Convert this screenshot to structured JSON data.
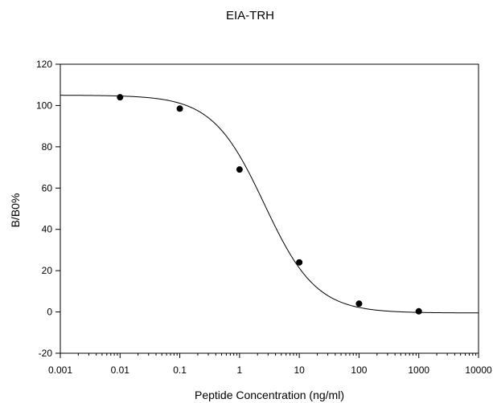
{
  "chart_data": {
    "type": "scatter",
    "title": "EIA-TRH",
    "xlabel": "Peptide Concentration (ng/ml)",
    "ylabel": "B/B0%",
    "x_scale": "log",
    "xlim": [
      0.001,
      10000
    ],
    "ylim": [
      -20,
      120
    ],
    "x_ticks": [
      "0.001",
      "0.01",
      "0.1",
      "1",
      "10",
      "100",
      "1000",
      "10000"
    ],
    "y_ticks": [
      "-20",
      "0",
      "20",
      "40",
      "60",
      "80",
      "100",
      "120"
    ],
    "grid": false,
    "series": [
      {
        "points": [
          {
            "x": 0.01,
            "y": 104
          },
          {
            "x": 0.1,
            "y": 98.5
          },
          {
            "x": 1,
            "y": 69
          },
          {
            "x": 10,
            "y": 24
          },
          {
            "x": 100,
            "y": 4
          },
          {
            "x": 1000,
            "y": 0.3
          }
        ],
        "marker_color": "#000000",
        "curve": {
          "kind": "4-parameter logistic fit",
          "top": 105,
          "bottom": -0.5,
          "ec50": 2.6,
          "hill": 1
        }
      }
    ]
  }
}
